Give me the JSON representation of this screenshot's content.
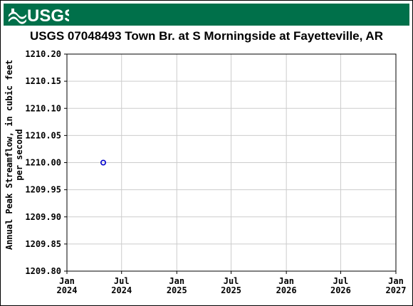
{
  "header": {
    "logo_text": "USGS",
    "brand_color": "#00704a"
  },
  "chart_data": {
    "type": "scatter",
    "title": "USGS 07048493 Town Br. at S Morningside at Fayetteville, AR",
    "xlabel": "",
    "ylabel": "Annual Peak Streamflow, in cubic feet per second",
    "ylabel_lines": [
      "Annual Peak Streamflow, in cubic feet",
      "per second"
    ],
    "ylim": [
      1209.8,
      1210.2
    ],
    "yticks": [
      "1210.20",
      "1210.15",
      "1210.10",
      "1210.05",
      "1210.00",
      "1209.95",
      "1209.90",
      "1209.85",
      "1209.80"
    ],
    "xlim": [
      "2024-01-01",
      "2027-01-01"
    ],
    "xticks": [
      {
        "date": "2024-01-01",
        "month": "Jan",
        "year": "2024"
      },
      {
        "date": "2024-07-01",
        "month": "Jul",
        "year": "2024"
      },
      {
        "date": "2025-01-01",
        "month": "Jan",
        "year": "2025"
      },
      {
        "date": "2025-07-01",
        "month": "Jul",
        "year": "2025"
      },
      {
        "date": "2026-01-01",
        "month": "Jan",
        "year": "2026"
      },
      {
        "date": "2026-07-01",
        "month": "Jul",
        "year": "2026"
      },
      {
        "date": "2027-01-01",
        "month": "Jan",
        "year": "2027"
      }
    ],
    "grid": true,
    "series": [
      {
        "color": "#0000cc",
        "marker": "open-circle",
        "points": [
          {
            "x": "2024-05-01",
            "y": 1210.0
          }
        ]
      }
    ]
  }
}
